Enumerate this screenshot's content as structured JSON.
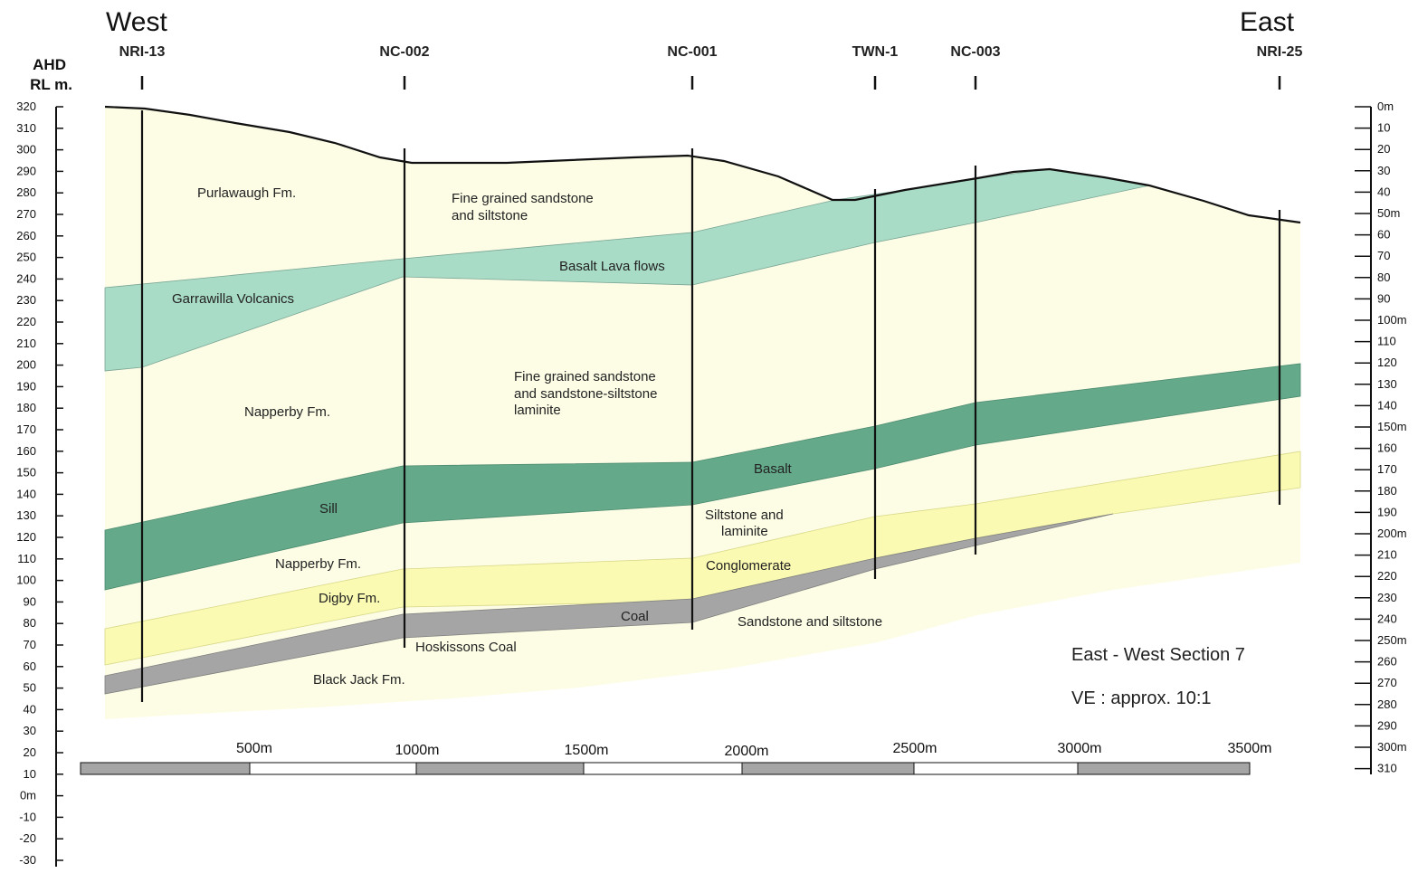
{
  "directions": {
    "west": "West",
    "east": "East"
  },
  "axis_left": {
    "title_line1": "AHD",
    "title_line2": "RL m.",
    "ticks": [
      "320",
      "310",
      "300",
      "290",
      "280",
      "270",
      "260",
      "250",
      "240",
      "230",
      "220",
      "210",
      "200",
      "190",
      "180",
      "170",
      "160",
      "150",
      "140",
      "130",
      "120",
      "110",
      "100",
      "90",
      "80",
      "70",
      "60",
      "50",
      "40",
      "30",
      "20",
      "10",
      "0m",
      "-10",
      "-20",
      "-30"
    ]
  },
  "axis_right": {
    "ticks": [
      "0m",
      "10",
      "20",
      "30",
      "40",
      "50m",
      "60",
      "70",
      "80",
      "90",
      "100m",
      "110",
      "120",
      "130",
      "140",
      "150m",
      "160",
      "170",
      "180",
      "190",
      "200m",
      "210",
      "220",
      "230",
      "240",
      "250m",
      "260",
      "270",
      "280",
      "290",
      "300m",
      "310"
    ]
  },
  "wells": [
    {
      "id": "NRI-13"
    },
    {
      "id": "NC-002"
    },
    {
      "id": "NC-001"
    },
    {
      "id": "TWN-1"
    },
    {
      "id": "NC-003"
    },
    {
      "id": "NRI-25"
    }
  ],
  "layer_labels": {
    "purlawaugh": "Purlawaugh Fm.",
    "fine_sand_1a": "Fine grained sandstone",
    "fine_sand_1b": "and siltstone",
    "basalt_lava": "Basalt Lava flows",
    "garrawilla": "Garrawilla Volcanics",
    "fine_sand_2a": "Fine grained sandstone",
    "fine_sand_2b": "and sandstone-siltstone",
    "fine_sand_2c": "laminite",
    "napperby_upper": "Napperby Fm.",
    "basalt": "Basalt",
    "sill": "Sill",
    "siltstone_a": "Siltstone and",
    "siltstone_b": "laminite",
    "napperby_lower": "Napperby Fm.",
    "conglomerate": "Conglomerate",
    "digby": "Digby Fm.",
    "coal": "Coal",
    "sandstone_siltstone": "Sandstone and siltstone",
    "hoskissons": "Hoskissons Coal",
    "black_jack": "Black Jack Fm."
  },
  "notes": {
    "section_title": "East - West Section 7",
    "vertical_exaggeration": "VE : approx. 10:1"
  },
  "scale_bar": {
    "labels": [
      "500m",
      "1000m",
      "1500m",
      "2000m",
      "2500m",
      "3000m",
      "3500m"
    ]
  },
  "colors": {
    "background": "#ffffff",
    "sandstone_fill": "#fdfde6",
    "volcanic_green": "#a9dcc6",
    "basalt_green": "#64a98a",
    "digby_yellow": "#fafab2",
    "coal_grey": "#a5a5a5",
    "line": "#111111"
  }
}
